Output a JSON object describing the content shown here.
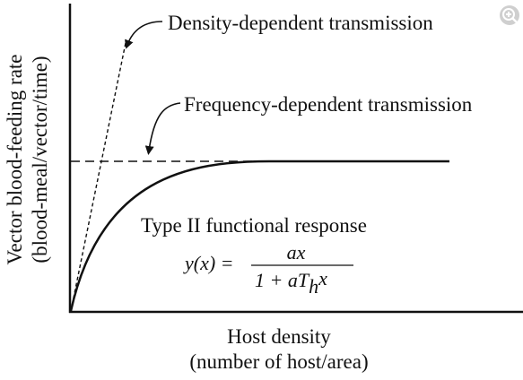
{
  "figure": {
    "y_axis_label": [
      "Vector blood-feeding rate",
      "(blood-meal/vector/time)"
    ],
    "x_axis_label": [
      "Host density",
      "(number of host/area)"
    ],
    "annotations": {
      "density_dependent": "Density-dependent transmission",
      "frequency_dependent": "Frequency-dependent transmission"
    },
    "curve_label": "Type II functional response",
    "equation": {
      "lhs": "y(x) =",
      "numerator": "ax",
      "denominator_prefix": "1 + aT",
      "subscript": "h",
      "denominator_suffix": "x"
    }
  },
  "controls": {
    "zoom_icon": "zoom-in-icon"
  },
  "colors": {
    "line": "#111111",
    "background": "#ffffff",
    "zoom_button_bg": "#cfcfcf"
  }
}
